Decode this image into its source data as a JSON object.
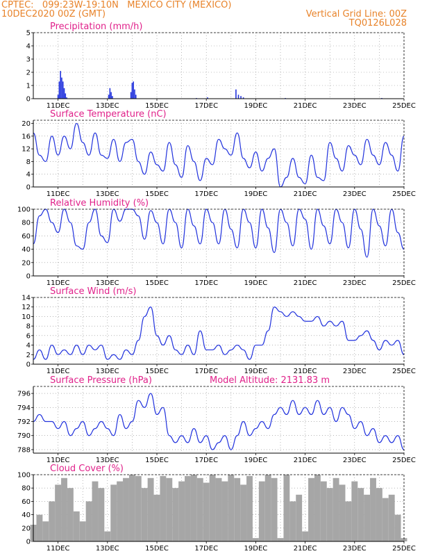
{
  "header": {
    "line1": "CPTEC:   099:23W-19:10N   MEXICO CITY (MEXICO)",
    "line2": "10DEC2020 00Z (GMT)",
    "grid_note": "Vertical Grid Line: 00Z",
    "code": "TQ0126L028"
  },
  "colors": {
    "header": "#e8832a",
    "title": "#e0218a",
    "series": "#2233dd",
    "cloud": "#a6a6a6"
  },
  "x_ticks": [
    "11DEC",
    "13DEC",
    "15DEC",
    "17DEC",
    "19DEC",
    "21DEC",
    "23DEC",
    "25DEC"
  ],
  "chart_data": [
    {
      "id": "precip",
      "type": "bar",
      "title": "Precipitation (mm/h)",
      "ylim": [
        0,
        5
      ],
      "yticks": [
        0,
        1,
        2,
        3,
        4,
        5
      ],
      "x_unit": "days since 10DEC2020 00Z",
      "points": [
        [
          1.0,
          0.3
        ],
        [
          1.05,
          1.3
        ],
        [
          1.1,
          2.1
        ],
        [
          1.15,
          1.6
        ],
        [
          1.2,
          1.3
        ],
        [
          1.25,
          0.8
        ],
        [
          1.3,
          0.4
        ],
        [
          1.35,
          0.1
        ],
        [
          3.05,
          0.3
        ],
        [
          3.1,
          0.8
        ],
        [
          3.15,
          0.5
        ],
        [
          3.2,
          0.2
        ],
        [
          3.95,
          0.5
        ],
        [
          4.0,
          1.2
        ],
        [
          4.05,
          1.3
        ],
        [
          4.1,
          0.7
        ],
        [
          4.15,
          0.3
        ],
        [
          6.6,
          0.05
        ],
        [
          7.05,
          0.1
        ],
        [
          8.2,
          0.7
        ],
        [
          8.3,
          0.3
        ],
        [
          8.4,
          0.2
        ],
        [
          8.5,
          0.1
        ],
        [
          10.2,
          0.05
        ],
        [
          14.1,
          0.05
        ]
      ]
    },
    {
      "id": "temp",
      "type": "line",
      "title": "Surface Temperature (nC)",
      "ylim": [
        0,
        21
      ],
      "yticks": [
        0,
        4,
        8,
        12,
        16,
        20
      ],
      "x": [
        0,
        0.25,
        0.5,
        0.75,
        1,
        1.25,
        1.5,
        1.75,
        2,
        2.25,
        2.5,
        2.75,
        3,
        3.25,
        3.5,
        3.75,
        4,
        4.25,
        4.5,
        4.75,
        5,
        5.25,
        5.5,
        5.75,
        6,
        6.25,
        6.5,
        6.75,
        7,
        7.25,
        7.5,
        7.75,
        8,
        8.25,
        8.5,
        8.75,
        9,
        9.25,
        9.5,
        9.75,
        10,
        10.25,
        10.5,
        10.75,
        11,
        11.25,
        11.5,
        11.75,
        12,
        12.25,
        12.5,
        12.75,
        13,
        13.25,
        13.5,
        13.75,
        14,
        14.25,
        14.5,
        14.75,
        15
      ],
      "values": [
        17,
        10,
        8,
        16,
        10,
        16,
        12,
        20,
        14,
        10,
        17,
        10,
        9,
        15,
        8,
        14,
        15,
        8,
        4,
        11,
        7,
        5,
        14,
        7,
        3,
        13,
        8,
        2,
        9,
        7,
        15,
        12,
        10,
        17,
        9,
        6,
        11,
        5,
        9,
        12,
        0,
        3,
        9,
        3,
        1,
        10,
        3,
        2,
        14,
        9,
        5,
        13,
        10,
        7,
        15,
        10,
        7,
        14,
        10,
        5,
        16
      ]
    },
    {
      "id": "rh",
      "type": "line",
      "title": "Relative Humidity (%)",
      "ylim": [
        0,
        100
      ],
      "yticks": [
        0,
        20,
        40,
        60,
        80,
        100
      ],
      "x": [
        0,
        0.25,
        0.5,
        0.75,
        1,
        1.25,
        1.5,
        1.75,
        2,
        2.25,
        2.5,
        2.75,
        3,
        3.25,
        3.5,
        3.75,
        4,
        4.25,
        4.5,
        4.75,
        5,
        5.25,
        5.5,
        5.75,
        6,
        6.25,
        6.5,
        6.75,
        7,
        7.25,
        7.5,
        7.75,
        8,
        8.25,
        8.5,
        8.75,
        9,
        9.25,
        9.5,
        9.75,
        10,
        10.25,
        10.5,
        10.75,
        11,
        11.25,
        11.5,
        11.75,
        12,
        12.25,
        12.5,
        12.75,
        13,
        13.25,
        13.5,
        13.75,
        14,
        14.25,
        14.5,
        14.75,
        15
      ],
      "values": [
        48,
        90,
        100,
        80,
        65,
        100,
        80,
        45,
        40,
        80,
        100,
        60,
        50,
        100,
        82,
        100,
        100,
        90,
        55,
        98,
        80,
        48,
        100,
        80,
        42,
        100,
        75,
        48,
        100,
        80,
        48,
        100,
        70,
        42,
        100,
        80,
        42,
        100,
        72,
        35,
        100,
        80,
        45,
        100,
        85,
        40,
        100,
        75,
        48,
        100,
        80,
        42,
        100,
        70,
        28,
        100,
        75,
        45,
        100,
        65,
        40
      ]
    },
    {
      "id": "wind",
      "type": "line",
      "title": "Surface Wind (m/s)",
      "ylim": [
        0,
        14
      ],
      "yticks": [
        0,
        2,
        4,
        6,
        8,
        10,
        12,
        14
      ],
      "x": [
        0,
        0.25,
        0.5,
        0.75,
        1,
        1.25,
        1.5,
        1.75,
        2,
        2.25,
        2.5,
        2.75,
        3,
        3.25,
        3.5,
        3.75,
        4,
        4.25,
        4.5,
        4.75,
        5,
        5.25,
        5.5,
        5.75,
        6,
        6.25,
        6.5,
        6.75,
        7,
        7.25,
        7.5,
        7.75,
        8,
        8.25,
        8.5,
        8.75,
        9,
        9.25,
        9.5,
        9.75,
        10,
        10.25,
        10.5,
        10.75,
        11,
        11.25,
        11.5,
        11.75,
        12,
        12.25,
        12.5,
        12.75,
        13,
        13.25,
        13.5,
        13.75,
        14,
        14.25,
        14.5,
        14.75,
        15
      ],
      "values": [
        1,
        3,
        1,
        4,
        2,
        3,
        2,
        4,
        2,
        4,
        3,
        4,
        1,
        2,
        1,
        3,
        2,
        5,
        10,
        12,
        6,
        4,
        6,
        3,
        2,
        4,
        2,
        7,
        3,
        3,
        4,
        2,
        3,
        4,
        3,
        1,
        4,
        4,
        7,
        12,
        11,
        10,
        11,
        10,
        9,
        9,
        10,
        8,
        9,
        8,
        9,
        5,
        5,
        6,
        7,
        5,
        3,
        5,
        4,
        5,
        2
      ]
    },
    {
      "id": "pressure",
      "type": "line",
      "title": "Surface Pressure (hPa)",
      "annotation": "Model Altitude: 2131.83 m",
      "ylim": [
        787.5,
        797
      ],
      "yticks": [
        788,
        790,
        792,
        794,
        796
      ],
      "x": [
        0,
        0.25,
        0.5,
        0.75,
        1,
        1.25,
        1.5,
        1.75,
        2,
        2.25,
        2.5,
        2.75,
        3,
        3.25,
        3.5,
        3.75,
        4,
        4.25,
        4.5,
        4.75,
        5,
        5.25,
        5.5,
        5.75,
        6,
        6.25,
        6.5,
        6.75,
        7,
        7.25,
        7.5,
        7.75,
        8,
        8.25,
        8.5,
        8.75,
        9,
        9.25,
        9.5,
        9.75,
        10,
        10.25,
        10.5,
        10.75,
        11,
        11.25,
        11.5,
        11.75,
        12,
        12.25,
        12.5,
        12.75,
        13,
        13.25,
        13.5,
        13.75,
        14,
        14.25,
        14.5,
        14.75,
        15
      ],
      "values": [
        792,
        793,
        792,
        792,
        791,
        792,
        790,
        791,
        792,
        790,
        791,
        792,
        791,
        790,
        793,
        791,
        792,
        795,
        794,
        796,
        793,
        794,
        790,
        789,
        790,
        789,
        791,
        789,
        790,
        788,
        789,
        790,
        788,
        790,
        792,
        790,
        791,
        792,
        791,
        793,
        794,
        793,
        795,
        793,
        794,
        793,
        795,
        793,
        794,
        792,
        794,
        793,
        791,
        792,
        790,
        791,
        789,
        790,
        789,
        790,
        788
      ]
    },
    {
      "id": "cloud",
      "type": "area",
      "title": "Cloud Cover (%)",
      "ylim": [
        0,
        100
      ],
      "yticks": [
        0,
        20,
        40,
        60,
        80,
        100
      ],
      "x": [
        0,
        0.25,
        0.5,
        0.75,
        1,
        1.25,
        1.5,
        1.75,
        2,
        2.25,
        2.5,
        2.75,
        3,
        3.25,
        3.5,
        3.75,
        4,
        4.25,
        4.5,
        4.75,
        5,
        5.25,
        5.5,
        5.75,
        6,
        6.25,
        6.5,
        6.75,
        7,
        7.25,
        7.5,
        7.75,
        8,
        8.25,
        8.5,
        8.75,
        9,
        9.25,
        9.5,
        9.75,
        10,
        10.25,
        10.5,
        10.75,
        11,
        11.25,
        11.5,
        11.75,
        12,
        12.25,
        12.5,
        12.75,
        13,
        13.25,
        13.5,
        13.75,
        14,
        14.25,
        14.5,
        14.75,
        15
      ],
      "values": [
        25,
        40,
        30,
        60,
        85,
        95,
        80,
        45,
        30,
        60,
        90,
        80,
        15,
        85,
        90,
        95,
        100,
        98,
        80,
        95,
        70,
        98,
        95,
        80,
        90,
        98,
        100,
        95,
        88,
        100,
        95,
        90,
        100,
        95,
        85,
        98,
        5,
        90,
        100,
        95,
        5,
        100,
        60,
        70,
        15,
        95,
        100,
        90,
        80,
        95,
        85,
        60,
        90,
        80,
        70,
        95,
        80,
        65,
        70,
        40,
        5
      ]
    }
  ]
}
